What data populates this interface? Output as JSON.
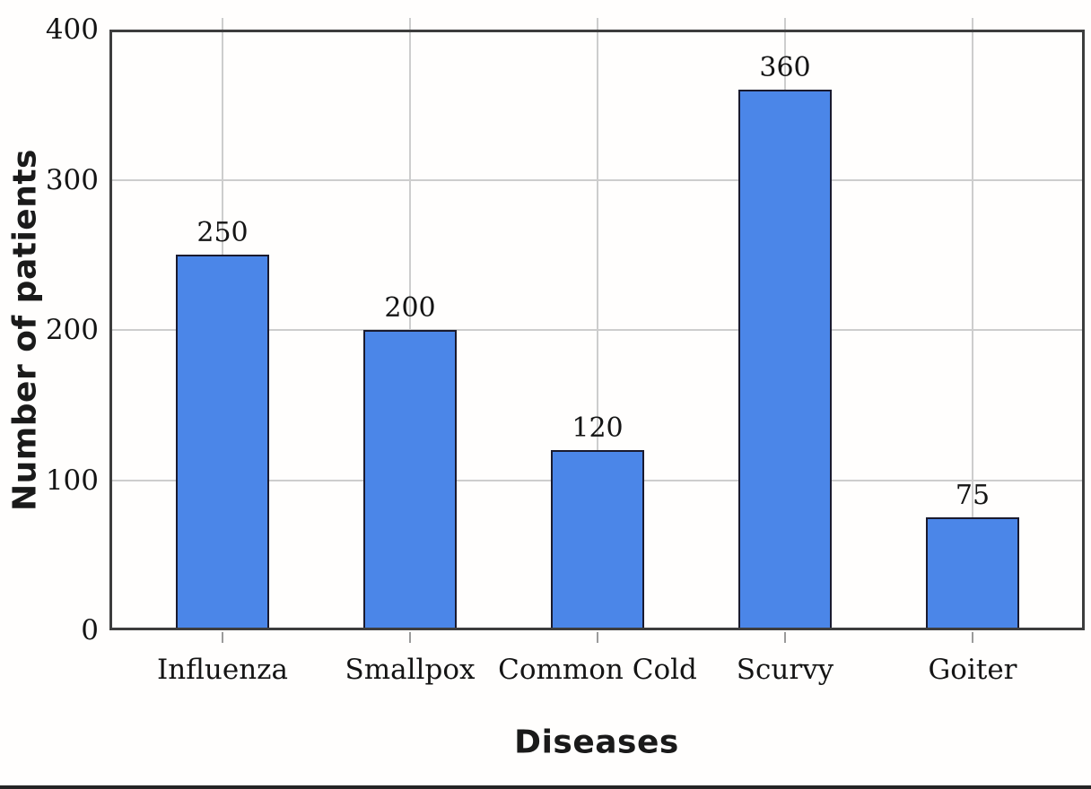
{
  "chart_data": {
    "type": "bar",
    "title": "",
    "categories": [
      "Influenza",
      "Smallpox",
      "Common Cold",
      "Scurvy",
      "Goiter"
    ],
    "values": [
      250,
      200,
      120,
      360,
      75
    ],
    "value_labels": [
      "250",
      "200",
      "120",
      "360",
      "75"
    ],
    "xlabel": "Diseases",
    "ylabel": "Number of patients",
    "ylim": [
      0,
      400
    ],
    "yticks": [
      0,
      100,
      200,
      300,
      400
    ],
    "ytick_labels": [
      "0",
      "100",
      "200",
      "300",
      "400"
    ],
    "grid": true,
    "legend": "none",
    "bar_color": "#4b86e8",
    "bar_border_color": "#1a1a2e",
    "frame_color": "#3d3d3d",
    "gridline_color": "#cdcdcd",
    "text_color": "#141414"
  }
}
